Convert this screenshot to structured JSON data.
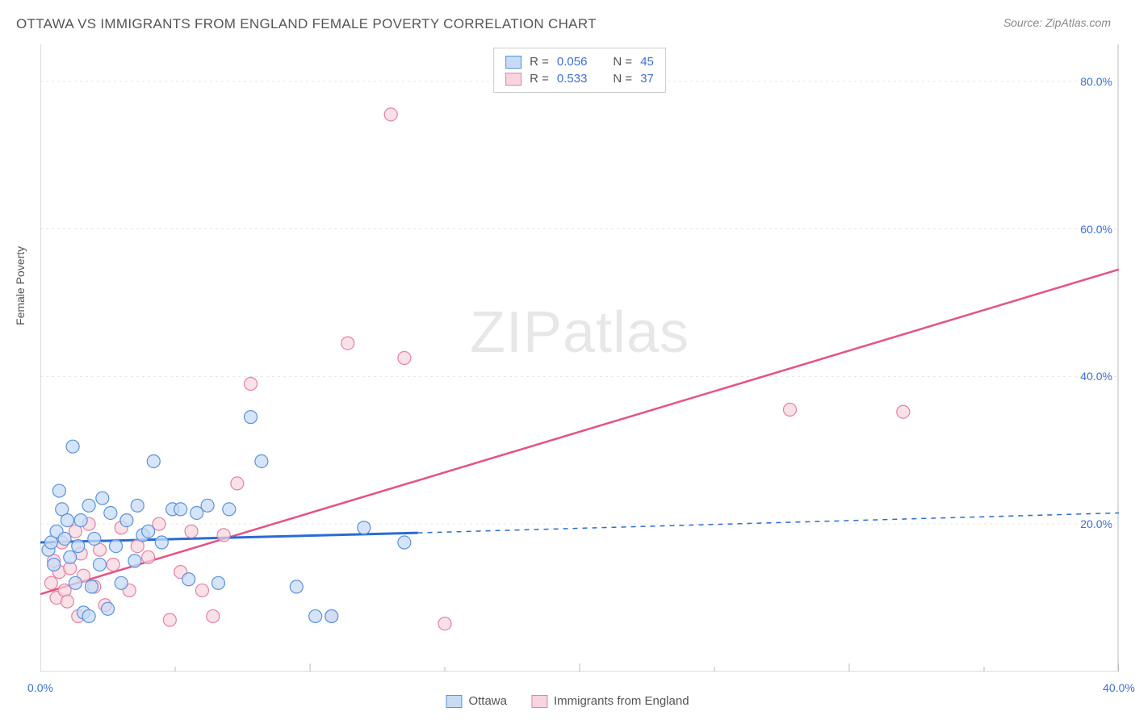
{
  "header": {
    "title": "OTTAWA VS IMMIGRANTS FROM ENGLAND FEMALE POVERTY CORRELATION CHART",
    "source": "Source: ZipAtlas.com"
  },
  "watermark": {
    "zip": "ZIP",
    "atlas": "atlas"
  },
  "chart": {
    "type": "scatter",
    "ylabel": "Female Poverty",
    "xlim": [
      0,
      40
    ],
    "ylim": [
      0,
      85
    ],
    "x_ticks": [
      0,
      10,
      20,
      30,
      40
    ],
    "x_tick_labels": [
      "0.0%",
      "",
      "",
      "",
      "40.0%"
    ],
    "x_minor_ticks": [
      5,
      15,
      25,
      35
    ],
    "y_ticks": [
      20,
      40,
      60,
      80
    ],
    "y_tick_labels": [
      "20.0%",
      "40.0%",
      "60.0%",
      "80.0%"
    ],
    "y_grid": [
      20,
      40,
      60,
      80
    ],
    "background_color": "#ffffff",
    "grid_color": "#e5e5e5",
    "axis_color": "#bbbbbb",
    "series": [
      {
        "name": "Ottawa",
        "label": "Ottawa",
        "fill": "#c7dbf5",
        "stroke": "#5a92de",
        "line_stroke": "#2a6bd4",
        "marker_radius": 8,
        "marker_opacity": 0.75,
        "R": "0.056",
        "N": "45",
        "regression": {
          "x1": 0,
          "y1": 17.5,
          "x2": 14,
          "y2": 18.8,
          "x2_dash": 40,
          "y2_dash": 21.5
        },
        "points": [
          [
            0.3,
            16.5
          ],
          [
            0.4,
            17.5
          ],
          [
            0.5,
            14.5
          ],
          [
            0.6,
            19.0
          ],
          [
            0.8,
            22.0
          ],
          [
            0.9,
            18.0
          ],
          [
            1.0,
            20.5
          ],
          [
            0.7,
            24.5
          ],
          [
            1.2,
            30.5
          ],
          [
            1.1,
            15.5
          ],
          [
            1.3,
            12.0
          ],
          [
            1.4,
            17.0
          ],
          [
            1.5,
            20.5
          ],
          [
            1.6,
            8.0
          ],
          [
            1.8,
            22.5
          ],
          [
            1.8,
            7.5
          ],
          [
            1.9,
            11.5
          ],
          [
            2.0,
            18.0
          ],
          [
            2.2,
            14.5
          ],
          [
            2.3,
            23.5
          ],
          [
            2.5,
            8.5
          ],
          [
            2.6,
            21.5
          ],
          [
            2.8,
            17.0
          ],
          [
            3.0,
            12.0
          ],
          [
            3.2,
            20.5
          ],
          [
            3.5,
            15.0
          ],
          [
            3.6,
            22.5
          ],
          [
            3.8,
            18.5
          ],
          [
            4.0,
            19.0
          ],
          [
            4.2,
            28.5
          ],
          [
            4.5,
            17.5
          ],
          [
            4.9,
            22.0
          ],
          [
            5.2,
            22.0
          ],
          [
            5.5,
            12.5
          ],
          [
            5.8,
            21.5
          ],
          [
            6.2,
            22.5
          ],
          [
            6.6,
            12.0
          ],
          [
            7.0,
            22.0
          ],
          [
            7.8,
            34.5
          ],
          [
            8.2,
            28.5
          ],
          [
            9.5,
            11.5
          ],
          [
            10.2,
            7.5
          ],
          [
            10.8,
            7.5
          ],
          [
            12.0,
            19.5
          ],
          [
            13.5,
            17.5
          ]
        ]
      },
      {
        "name": "Immigrants from England",
        "label": "Immigrants from England",
        "fill": "#f7d4de",
        "stroke": "#e97fa0",
        "line_stroke": "#e65286",
        "marker_radius": 8,
        "marker_opacity": 0.7,
        "R": "0.533",
        "N": "37",
        "regression": {
          "x1": 0,
          "y1": 10.5,
          "x2": 40,
          "y2": 54.5
        },
        "points": [
          [
            0.4,
            12.0
          ],
          [
            0.5,
            15.0
          ],
          [
            0.6,
            10.0
          ],
          [
            0.7,
            13.5
          ],
          [
            0.8,
            17.5
          ],
          [
            0.9,
            11.0
          ],
          [
            1.0,
            9.5
          ],
          [
            1.1,
            14.0
          ],
          [
            1.3,
            19.0
          ],
          [
            1.4,
            7.5
          ],
          [
            1.5,
            16.0
          ],
          [
            1.6,
            13.0
          ],
          [
            1.8,
            20.0
          ],
          [
            2.0,
            11.5
          ],
          [
            2.2,
            16.5
          ],
          [
            2.4,
            9.0
          ],
          [
            2.7,
            14.5
          ],
          [
            3.0,
            19.5
          ],
          [
            3.3,
            11.0
          ],
          [
            3.6,
            17.0
          ],
          [
            4.0,
            15.5
          ],
          [
            4.4,
            20.0
          ],
          [
            4.8,
            7.0
          ],
          [
            5.2,
            13.5
          ],
          [
            5.6,
            19.0
          ],
          [
            6.0,
            11.0
          ],
          [
            6.4,
            7.5
          ],
          [
            6.8,
            18.5
          ],
          [
            7.3,
            25.5
          ],
          [
            7.8,
            39.0
          ],
          [
            10.8,
            7.5
          ],
          [
            11.4,
            44.5
          ],
          [
            13.0,
            75.5
          ],
          [
            13.5,
            42.5
          ],
          [
            15.0,
            6.5
          ],
          [
            27.8,
            35.5
          ],
          [
            32.0,
            35.2
          ]
        ]
      }
    ],
    "legend_top": {
      "R_label": "R =",
      "N_label": "N ="
    },
    "legend_bottom_labels": [
      "Ottawa",
      "Immigrants from England"
    ]
  }
}
